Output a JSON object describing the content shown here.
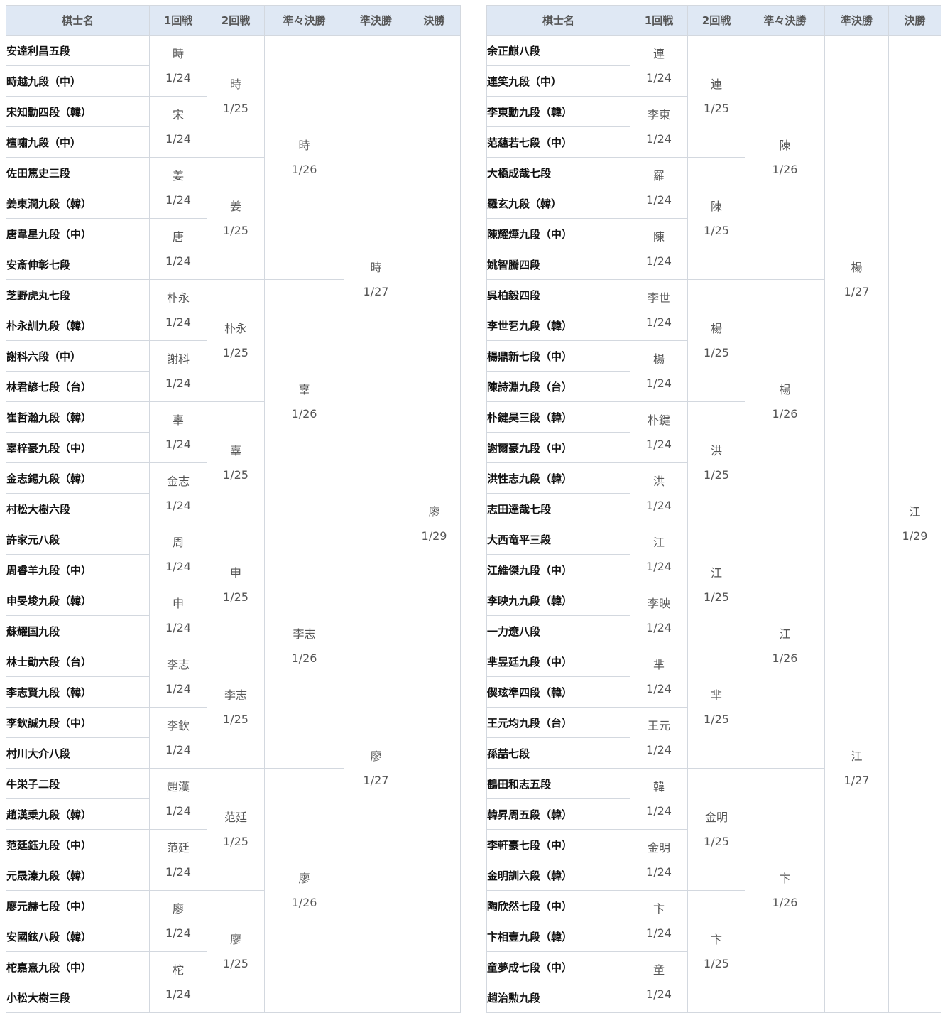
{
  "headers": [
    "棋士名",
    "1回戦",
    "2回戦",
    "準々決勝",
    "準決勝",
    "決勝"
  ],
  "colors": {
    "header_bg": "#dfe8f4",
    "border": "#d3d8df",
    "result_text": "#555555"
  },
  "brackets": [
    {
      "players": [
        "安達利昌五段",
        "時越九段（中）",
        "宋知勳四段（韓）",
        "檀嘯九段（中）",
        "佐田篤史三段",
        "姜東潤九段（韓）",
        "唐韋星九段（中）",
        "安斎伸彰七段",
        "芝野虎丸七段",
        "朴永訓九段（韓）",
        "謝科六段（中）",
        "林君諺七段（台）",
        "崔哲瀚九段（韓）",
        "辜梓豪九段（中）",
        "金志錫九段（韓）",
        "村松大樹六段",
        "許家元八段",
        "周睿羊九段（中）",
        "申旻埈九段（韓）",
        "蘇耀国九段",
        "林士勛六段（台）",
        "李志賢九段（韓）",
        "李欽誠九段（中）",
        "村川大介八段",
        "牛栄子二段",
        "趙漢乗九段（韓）",
        "范廷鈺九段（中）",
        "元晟溱九段（韓）",
        "廖元赫七段（中）",
        "安國鉉八段（韓）",
        "柁嘉熹九段（中）",
        "小松大樹三段"
      ],
      "rounds": [
        [
          {
            "w": "時",
            "d": "1/24"
          },
          {
            "w": "宋",
            "d": "1/24"
          },
          {
            "w": "姜",
            "d": "1/24"
          },
          {
            "w": "唐",
            "d": "1/24"
          },
          {
            "w": "朴永",
            "d": "1/24"
          },
          {
            "w": "謝科",
            "d": "1/24"
          },
          {
            "w": "辜",
            "d": "1/24"
          },
          {
            "w": "金志",
            "d": "1/24"
          },
          {
            "w": "周",
            "d": "1/24"
          },
          {
            "w": "申",
            "d": "1/24"
          },
          {
            "w": "李志",
            "d": "1/24"
          },
          {
            "w": "李欽",
            "d": "1/24"
          },
          {
            "w": "趙漢",
            "d": "1/24"
          },
          {
            "w": "范廷",
            "d": "1/24"
          },
          {
            "w": "廖",
            "d": "1/24"
          },
          {
            "w": "柁",
            "d": "1/24"
          }
        ],
        [
          {
            "w": "時",
            "d": "1/25"
          },
          {
            "w": "姜",
            "d": "1/25"
          },
          {
            "w": "朴永",
            "d": "1/25"
          },
          {
            "w": "辜",
            "d": "1/25"
          },
          {
            "w": "申",
            "d": "1/25"
          },
          {
            "w": "李志",
            "d": "1/25"
          },
          {
            "w": "范廷",
            "d": "1/25"
          },
          {
            "w": "廖",
            "d": "1/25"
          }
        ],
        [
          {
            "w": "時",
            "d": "1/26"
          },
          {
            "w": "辜",
            "d": "1/26"
          },
          {
            "w": "李志",
            "d": "1/26"
          },
          {
            "w": "廖",
            "d": "1/26"
          }
        ],
        [
          {
            "w": "時",
            "d": "1/27"
          },
          {
            "w": "廖",
            "d": "1/27"
          }
        ],
        [
          {
            "w": "廖",
            "d": "1/29"
          }
        ]
      ]
    },
    {
      "players": [
        "余正麒八段",
        "連笑九段（中）",
        "李東勳九段（韓）",
        "范蘊若七段（中）",
        "大橋成哉七段",
        "羅玄九段（韓）",
        "陳耀燁九段（中）",
        "姚智騰四段",
        "呉柏毅四段",
        "李世乭九段（韓）",
        "楊鼎新七段（中）",
        "陳詩淵九段（台）",
        "朴鍵昊三段（韓）",
        "謝爾豪九段（中）",
        "洪性志九段（韓）",
        "志田達哉七段",
        "大西竜平三段",
        "江維傑九段（中）",
        "李映九九段（韓）",
        "一力遼八段",
        "芈昱廷九段（中）",
        "偰玹準四段（韓）",
        "王元均九段（台）",
        "孫喆七段",
        "鶴田和志五段",
        "韓昇周五段（韓）",
        "李軒豪七段（中）",
        "金明訓六段（韓）",
        "陶欣然七段（中）",
        "卞相壹九段（韓）",
        "童夢成七段（中）",
        "趙治勲九段"
      ],
      "rounds": [
        [
          {
            "w": "連",
            "d": "1/24"
          },
          {
            "w": "李東",
            "d": "1/24"
          },
          {
            "w": "羅",
            "d": "1/24"
          },
          {
            "w": "陳",
            "d": "1/24"
          },
          {
            "w": "李世",
            "d": "1/24"
          },
          {
            "w": "楊",
            "d": "1/24"
          },
          {
            "w": "朴鍵",
            "d": "1/24"
          },
          {
            "w": "洪",
            "d": "1/24"
          },
          {
            "w": "江",
            "d": "1/24"
          },
          {
            "w": "李映",
            "d": "1/24"
          },
          {
            "w": "芈",
            "d": "1/24"
          },
          {
            "w": "王元",
            "d": "1/24"
          },
          {
            "w": "韓",
            "d": "1/24"
          },
          {
            "w": "金明",
            "d": "1/24"
          },
          {
            "w": "卞",
            "d": "1/24"
          },
          {
            "w": "童",
            "d": "1/24"
          }
        ],
        [
          {
            "w": "連",
            "d": "1/25"
          },
          {
            "w": "陳",
            "d": "1/25"
          },
          {
            "w": "楊",
            "d": "1/25"
          },
          {
            "w": "洪",
            "d": "1/25"
          },
          {
            "w": "江",
            "d": "1/25"
          },
          {
            "w": "芈",
            "d": "1/25"
          },
          {
            "w": "金明",
            "d": "1/25"
          },
          {
            "w": "卞",
            "d": "1/25"
          }
        ],
        [
          {
            "w": "陳",
            "d": "1/26"
          },
          {
            "w": "楊",
            "d": "1/26"
          },
          {
            "w": "江",
            "d": "1/26"
          },
          {
            "w": "卞",
            "d": "1/26"
          }
        ],
        [
          {
            "w": "楊",
            "d": "1/27"
          },
          {
            "w": "江",
            "d": "1/27"
          }
        ],
        [
          {
            "w": "江",
            "d": "1/29"
          }
        ]
      ]
    }
  ]
}
